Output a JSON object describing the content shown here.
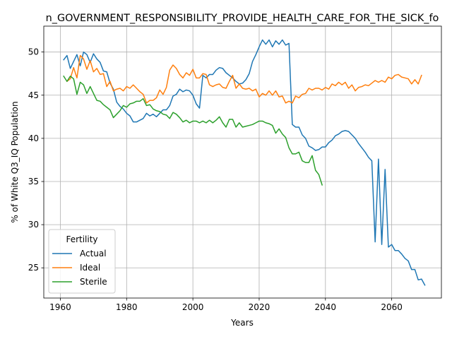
{
  "chart_data": {
    "type": "line",
    "title": "n_GOVERNMENT_RESPONSIBILITY_PROVIDE_HEALTH_CARE_FOR_THE_SICK_fo",
    "xlabel": "Years",
    "ylabel": "% of White Q3_IQ Population",
    "xlim": [
      1955,
      2075
    ],
    "ylim": [
      21.5,
      53.0
    ],
    "xticks": [
      1960,
      1980,
      2000,
      2020,
      2040,
      2060
    ],
    "yticks": [
      25,
      30,
      35,
      40,
      45,
      50
    ],
    "grid": true,
    "legend": {
      "title": "Fertility",
      "placement": "lower-left"
    },
    "series": [
      {
        "name": "Actual",
        "color": "#1f77b4",
        "x": [
          1961,
          1962,
          1963,
          1964,
          1965,
          1966,
          1967,
          1968,
          1969,
          1970,
          1971,
          1972,
          1973,
          1974,
          1975,
          1976,
          1977,
          1978,
          1979,
          1980,
          1981,
          1982,
          1983,
          1984,
          1985,
          1986,
          1987,
          1988,
          1989,
          1990,
          1991,
          1992,
          1993,
          1994,
          1995,
          1996,
          1997,
          1998,
          1999,
          2000,
          2001,
          2002,
          2003,
          2004,
          2005,
          2006,
          2007,
          2008,
          2009,
          2010,
          2011,
          2012,
          2013,
          2014,
          2015,
          2016,
          2017,
          2018,
          2019,
          2020,
          2021,
          2022,
          2023,
          2024,
          2025,
          2026,
          2027,
          2028,
          2029,
          2030,
          2031,
          2032,
          2033,
          2034,
          2035,
          2036,
          2037,
          2038,
          2039,
          2040,
          2041,
          2042,
          2043,
          2044,
          2045,
          2046,
          2047,
          2048,
          2049,
          2050,
          2051,
          2052,
          2053,
          2054,
          2055,
          2056,
          2057,
          2058,
          2059,
          2060,
          2061,
          2062,
          2063,
          2064,
          2065,
          2066,
          2067,
          2068,
          2069,
          2070
        ],
        "values": [
          49.1,
          49.6,
          48.1,
          48.9,
          49.7,
          48.4,
          50.0,
          49.7,
          48.8,
          49.8,
          49.2,
          48.8,
          47.8,
          47.7,
          46.4,
          45.7,
          44.2,
          43.7,
          43.4,
          42.9,
          42.6,
          41.9,
          41.9,
          42.1,
          42.3,
          42.9,
          42.6,
          42.8,
          42.5,
          42.9,
          43.3,
          43.3,
          43.8,
          44.9,
          45.1,
          45.7,
          45.4,
          45.6,
          45.5,
          45.0,
          44.0,
          43.5,
          47.3,
          47.0,
          47.4,
          47.4,
          47.9,
          48.2,
          48.1,
          47.6,
          47.3,
          47.0,
          46.6,
          46.3,
          46.4,
          46.8,
          47.5,
          48.9,
          49.7,
          50.6,
          51.4,
          50.9,
          51.4,
          50.6,
          51.3,
          50.9,
          51.4,
          50.8,
          51.0,
          41.6,
          41.3,
          41.3,
          40.4,
          40.0,
          39.1,
          38.9,
          38.6,
          38.7,
          39.0,
          39.0,
          39.5,
          39.8,
          40.3,
          40.5,
          40.8,
          40.9,
          40.8,
          40.4,
          40.0,
          39.4,
          38.9,
          38.4,
          37.8,
          37.4,
          28.0,
          37.6,
          27.7,
          36.4,
          27.4,
          27.7,
          27.0,
          27.0,
          26.6,
          26.1,
          25.8,
          24.8,
          24.8,
          23.6,
          23.7,
          23.0
        ]
      },
      {
        "name": "Ideal",
        "color": "#ff7f0e",
        "x": [
          1961,
          1962,
          1963,
          1964,
          1965,
          1966,
          1967,
          1968,
          1969,
          1970,
          1971,
          1972,
          1973,
          1974,
          1975,
          1976,
          1977,
          1978,
          1979,
          1980,
          1981,
          1982,
          1983,
          1984,
          1985,
          1986,
          1987,
          1988,
          1989,
          1990,
          1991,
          1992,
          1993,
          1994,
          1995,
          1996,
          1997,
          1998,
          1999,
          2000,
          2001,
          2002,
          2003,
          2004,
          2005,
          2006,
          2007,
          2008,
          2009,
          2010,
          2011,
          2012,
          2013,
          2014,
          2015,
          2016,
          2017,
          2018,
          2019,
          2020,
          2021,
          2022,
          2023,
          2024,
          2025,
          2026,
          2027,
          2028,
          2029,
          2030,
          2031,
          2032,
          2033,
          2034,
          2035,
          2036,
          2037,
          2038,
          2039,
          2040,
          2041,
          2042,
          2043,
          2044,
          2045,
          2046,
          2047,
          2048,
          2049,
          2050,
          2051,
          2052,
          2053,
          2054,
          2055,
          2056,
          2057,
          2058,
          2059,
          2060,
          2061,
          2062,
          2063,
          2064,
          2065,
          2066,
          2067,
          2068,
          2069,
          2070
        ],
        "values": [
          null,
          46.6,
          46.9,
          48.2,
          47.0,
          49.6,
          49.2,
          48.0,
          49.0,
          47.7,
          48.1,
          47.4,
          47.5,
          46.0,
          46.6,
          45.5,
          45.7,
          45.8,
          45.5,
          46.0,
          45.8,
          46.2,
          45.8,
          45.4,
          45.1,
          44.1,
          44.4,
          44.4,
          44.7,
          45.6,
          45.1,
          45.9,
          47.9,
          48.5,
          48.1,
          47.4,
          47.0,
          47.6,
          47.3,
          48.0,
          47.0,
          47.0,
          47.5,
          47.4,
          46.2,
          46.0,
          46.2,
          46.3,
          45.9,
          45.8,
          46.6,
          47.3,
          45.8,
          46.3,
          45.8,
          45.7,
          45.8,
          45.5,
          45.7,
          44.8,
          45.2,
          45.0,
          45.5,
          45.0,
          45.5,
          44.8,
          44.9,
          44.1,
          44.3,
          44.1,
          44.9,
          44.7,
          45.1,
          45.2,
          45.8,
          45.6,
          45.8,
          45.8,
          45.6,
          45.9,
          45.7,
          46.3,
          46.1,
          46.5,
          46.2,
          46.5,
          45.8,
          46.2,
          45.5,
          45.9,
          46.0,
          46.2,
          46.1,
          46.4,
          46.7,
          46.5,
          46.7,
          46.5,
          47.1,
          46.9,
          47.3,
          47.4,
          47.1,
          47.0,
          46.9,
          46.3,
          46.8,
          46.3,
          47.3,
          null
        ]
      },
      {
        "name": "Sterile",
        "color": "#2ca02c",
        "x": [
          1961,
          1962,
          1963,
          1964,
          1965,
          1966,
          1967,
          1968,
          1969,
          1970,
          1971,
          1972,
          1973,
          1974,
          1975,
          1976,
          1977,
          1978,
          1979,
          1980,
          1981,
          1982,
          1983,
          1984,
          1985,
          1986,
          1987,
          1988,
          1989,
          1990,
          1991,
          1992,
          1993,
          1994,
          1995,
          1996,
          1997,
          1998,
          1999,
          2000,
          2001,
          2002,
          2003,
          2004,
          2005,
          2006,
          2007,
          2008,
          2009,
          2010,
          2011,
          2012,
          2013,
          2014,
          2015,
          2016,
          2017,
          2018,
          2019,
          2020,
          2021,
          2022,
          2023,
          2024,
          2025,
          2026,
          2027,
          2028,
          2029,
          2030,
          2031,
          2032,
          2033,
          2034,
          2035,
          2036,
          2037,
          2038,
          2039
        ],
        "values": [
          47.2,
          46.6,
          47.2,
          46.9,
          45.1,
          46.5,
          46.2,
          45.2,
          46.0,
          45.2,
          44.4,
          44.3,
          43.9,
          43.6,
          43.3,
          42.4,
          42.8,
          43.2,
          43.8,
          43.6,
          44.0,
          44.1,
          44.3,
          44.3,
          44.6,
          43.8,
          43.9,
          43.4,
          43.2,
          43.1,
          42.8,
          42.7,
          42.3,
          43.0,
          42.8,
          42.4,
          41.9,
          42.1,
          41.8,
          42.0,
          42.0,
          41.8,
          42.0,
          41.8,
          42.1,
          41.8,
          42.1,
          42.5,
          41.8,
          41.3,
          42.2,
          42.2,
          41.3,
          41.8,
          41.3,
          41.4,
          41.5,
          41.6,
          41.8,
          42.0,
          42.0,
          41.8,
          41.7,
          41.5,
          40.6,
          41.1,
          40.5,
          40.1,
          38.9,
          38.2,
          38.2,
          38.4,
          37.4,
          37.2,
          37.2,
          38.0,
          36.3,
          35.8,
          34.6
        ]
      }
    ]
  }
}
